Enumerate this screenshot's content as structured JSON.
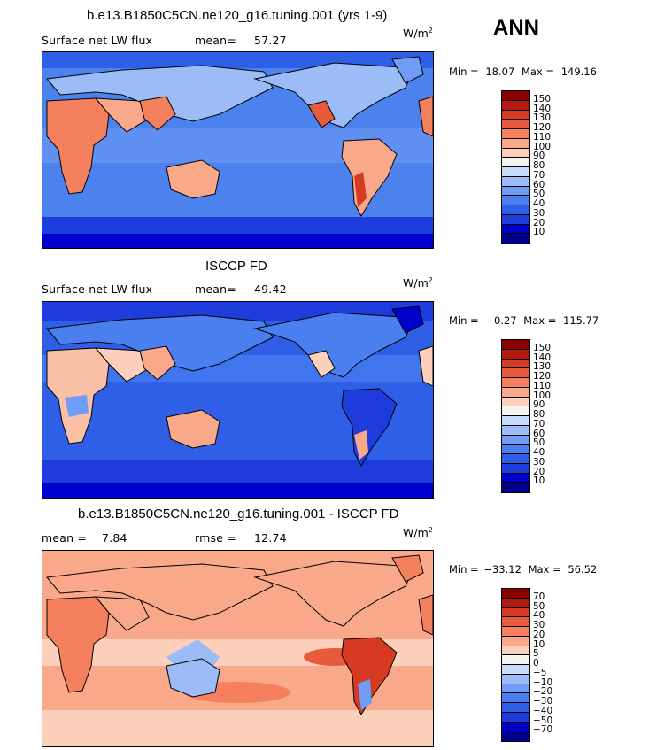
{
  "season": "ANN",
  "colors": {
    "abs_scale": [
      "#00008b",
      "#0000cd",
      "#1e3cdc",
      "#2e5fe6",
      "#4a7ff0",
      "#6f9cf5",
      "#9cbcf8",
      "#c8dcfb",
      "#f5f5ef",
      "#fcd0bb",
      "#f9a98a",
      "#f4805e",
      "#e85a3c",
      "#d63a22",
      "#b51a10",
      "#8b0000"
    ],
    "diff_scale": [
      "#00008b",
      "#0000cd",
      "#1e3cdc",
      "#2e5fe6",
      "#4a7ff0",
      "#6f9cf5",
      "#9cbcf8",
      "#c8dcfb",
      "#f5f5ef",
      "#fcd0bb",
      "#f9a98a",
      "#f4805e",
      "#e85a3c",
      "#d63a22",
      "#b51a10",
      "#8b0000"
    ]
  },
  "panels": [
    {
      "title": "b.e13.B1850C5CN.ne120_g16.tuning.001 (yrs 1-9)",
      "left_label": "Surface net LW flux",
      "stat_label": "mean=",
      "stat_value": "57.27",
      "units": "W/m",
      "units_exp": "2",
      "min_label": "Min =",
      "min_value": "18.07",
      "max_label": "Max =",
      "max_value": "149.16",
      "levels": [
        "150",
        "140",
        "130",
        "120",
        "110",
        "100",
        "90",
        "80",
        "70",
        "60",
        "50",
        "40",
        "30",
        "20",
        "10"
      ],
      "ocean": "#4c82ee",
      "land": "#f8a07e"
    },
    {
      "title": "ISCCP FD",
      "left_label": "Surface net LW flux",
      "stat_label": "mean=",
      "stat_value": "49.42",
      "units": "W/m",
      "units_exp": "2",
      "min_label": "Min =",
      "min_value": "−0.27",
      "max_label": "Max =",
      "max_value": "115.77",
      "levels": [
        "150",
        "140",
        "130",
        "120",
        "110",
        "100",
        "90",
        "80",
        "70",
        "60",
        "50",
        "40",
        "30",
        "20",
        "10"
      ],
      "ocean": "#2e5fe6",
      "land": "#fbc1a8"
    },
    {
      "title": "b.e13.B1850C5CN.ne120_g16.tuning.001 - ISCCP FD",
      "left_label": "mean =",
      "stat_label": "rmse =",
      "left_value": "7.84",
      "stat_value": "12.74",
      "units": "W/m",
      "units_exp": "2",
      "min_label": "Min =",
      "min_value": "−33.12",
      "max_label": "Max =",
      "max_value": "56.52",
      "levels": [
        "70",
        "50",
        "40",
        "30",
        "20",
        "10",
        "5",
        "0",
        "−5",
        "−10",
        "−20",
        "−30",
        "−40",
        "−50",
        "−70"
      ],
      "ocean": "#f7a685",
      "land": "#f4805e"
    }
  ]
}
